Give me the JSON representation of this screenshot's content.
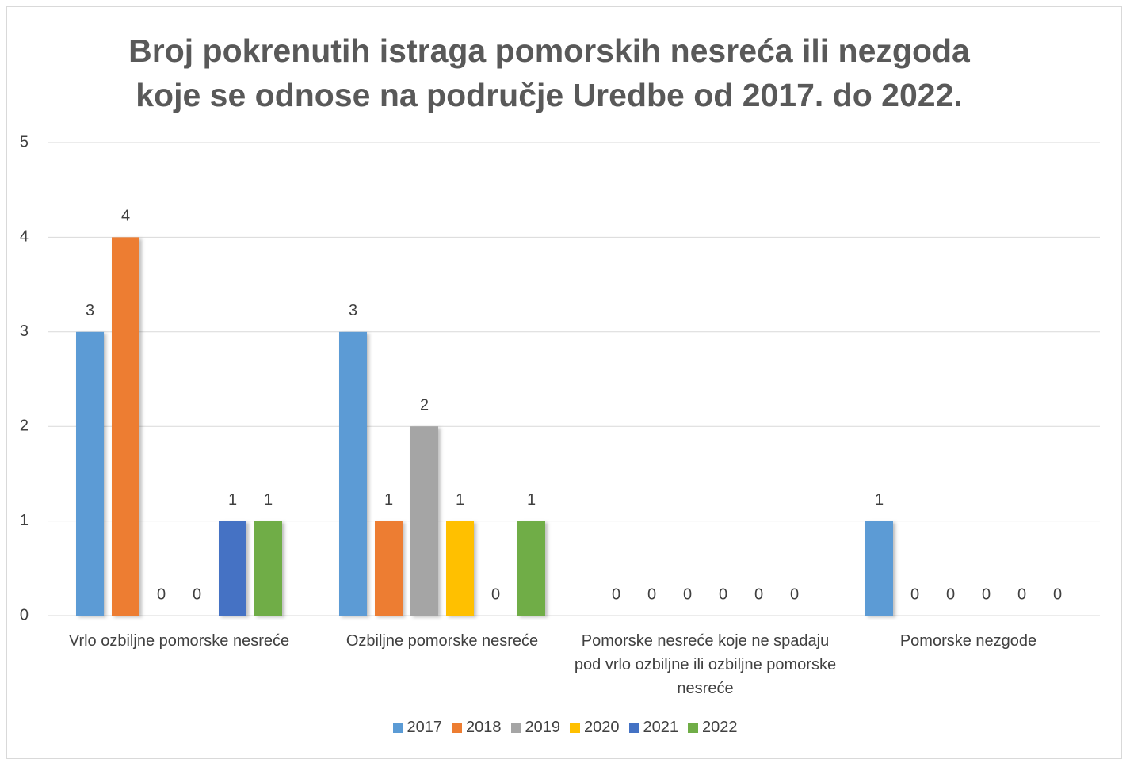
{
  "chart_data": {
    "type": "bar",
    "title": "Broj pokrenutih istraga pomorskih nesreća ili nezgoda koje se odnose na područje Uredbe od 2017. do 2022.",
    "categories": [
      "Vrlo ozbiljne pomorske nesreće",
      "Ozbiljne pomorske nesreće",
      "Pomorske nesreće koje ne spadaju pod vrlo ozbiljne ili ozbiljne pomorske nesreće",
      "Pomorske nezgode"
    ],
    "series": [
      {
        "name": "2017",
        "color": "#5b9bd5",
        "values": [
          3,
          3,
          0,
          1
        ]
      },
      {
        "name": "2018",
        "color": "#ed7d31",
        "values": [
          4,
          1,
          0,
          0
        ]
      },
      {
        "name": "2019",
        "color": "#a5a5a5",
        "values": [
          0,
          2,
          0,
          0
        ]
      },
      {
        "name": "2020",
        "color": "#ffc000",
        "values": [
          0,
          1,
          0,
          0
        ]
      },
      {
        "name": "2021",
        "color": "#4472c4",
        "values": [
          1,
          0,
          0,
          0
        ]
      },
      {
        "name": "2022",
        "color": "#70ad47",
        "values": [
          1,
          1,
          0,
          0
        ]
      }
    ],
    "ylim": [
      0,
      5
    ],
    "yticks": [
      0,
      1,
      2,
      3,
      4,
      5
    ],
    "grid": true,
    "legend": "bottom"
  }
}
